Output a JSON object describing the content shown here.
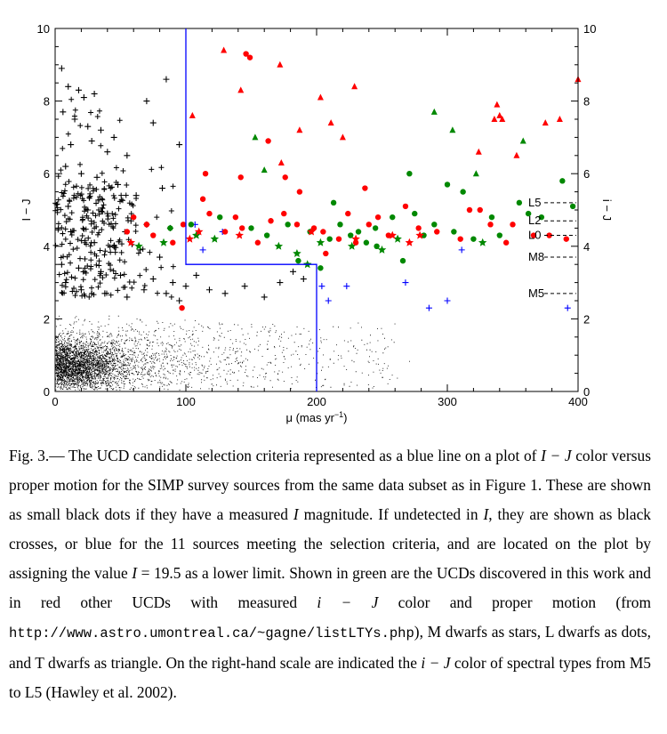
{
  "figure": {
    "x_title": "μ (mas yr",
    "x_title_sup": "−1",
    "x_title_end": ")",
    "y_title_left": "I − J",
    "y_title_right": "i − J",
    "spectral_labels": [
      "L5",
      "L2",
      "L0",
      "M8",
      "M5"
    ],
    "colors": {
      "black": "#000000",
      "blue": "#0000ff",
      "green": "#008800",
      "red": "#ff0000",
      "selection_line": "#0000ff"
    }
  },
  "chart_data": {
    "type": "scatter",
    "xlabel": "μ (mas yr−1)",
    "ylabel": "I − J",
    "ylabel_right": "i − J",
    "xlim": [
      0,
      400
    ],
    "ylim": [
      0,
      10
    ],
    "x_ticks": [
      0,
      100,
      200,
      300,
      400
    ],
    "y_ticks": [
      0,
      2,
      4,
      6,
      8,
      10
    ],
    "selection_criteria_line": [
      [
        100,
        10
      ],
      [
        100,
        3.5
      ],
      [
        200,
        3.5
      ],
      [
        200,
        0
      ]
    ],
    "spectral_types_right_scale": [
      {
        "label": "L5",
        "i_minus_J": 5.2
      },
      {
        "label": "L2",
        "i_minus_J": 4.7
      },
      {
        "label": "L0",
        "i_minus_J": 4.3
      },
      {
        "label": "M8",
        "i_minus_J": 3.7
      },
      {
        "label": "M5",
        "i_minus_J": 2.7
      }
    ],
    "series": [
      {
        "marker": "dot-small",
        "color": "#000000",
        "points": [
          [
            8,
            0.5
          ],
          [
            12,
            0.8
          ],
          [
            15,
            0.6
          ],
          [
            20,
            0.9
          ],
          [
            25,
            0.4
          ],
          [
            30,
            1.1
          ],
          [
            40,
            0.7
          ],
          [
            55,
            0.9
          ],
          [
            70,
            1.2
          ],
          [
            90,
            0.6
          ],
          [
            110,
            1.0
          ],
          [
            140,
            0.8
          ],
          [
            170,
            0.5
          ],
          [
            210,
            0.9
          ],
          [
            250,
            0.4
          ]
        ]
      },
      {
        "marker": "cross",
        "color": "#000000",
        "points": [
          [
            5,
            8.9
          ],
          [
            10,
            8.4
          ],
          [
            18,
            8.3
          ],
          [
            22,
            8.1
          ],
          [
            30,
            8.2
          ],
          [
            6,
            7.7
          ],
          [
            15,
            7.5
          ],
          [
            25,
            7.3
          ],
          [
            35,
            7.2
          ],
          [
            45,
            7.0
          ],
          [
            12,
            6.8
          ],
          [
            28,
            6.9
          ],
          [
            40,
            6.6
          ],
          [
            55,
            6.5
          ],
          [
            75,
            7.4
          ],
          [
            85,
            8.6
          ],
          [
            70,
            8.0
          ],
          [
            8,
            6.2
          ],
          [
            20,
            6.0
          ],
          [
            32,
            5.9
          ],
          [
            48,
            5.7
          ],
          [
            62,
            5.4
          ],
          [
            82,
            5.6
          ],
          [
            95,
            6.8
          ],
          [
            10,
            5.1
          ],
          [
            25,
            5.0
          ],
          [
            40,
            4.9
          ],
          [
            58,
            4.7
          ],
          [
            70,
            4.6
          ],
          [
            88,
            4.5
          ],
          [
            12,
            4.4
          ],
          [
            30,
            4.1
          ],
          [
            45,
            4.0
          ],
          [
            65,
            3.9
          ],
          [
            80,
            3.7
          ],
          [
            5,
            3.5
          ],
          [
            18,
            3.4
          ],
          [
            35,
            3.3
          ],
          [
            50,
            3.2
          ],
          [
            75,
            3.1
          ],
          [
            90,
            3.0
          ],
          [
            100,
            2.9
          ],
          [
            108,
            3.2
          ],
          [
            118,
            2.8
          ],
          [
            130,
            2.7
          ],
          [
            145,
            2.9
          ],
          [
            160,
            2.6
          ],
          [
            172,
            3.0
          ],
          [
            182,
            3.3
          ],
          [
            190,
            3.1
          ],
          [
            8,
            3.0
          ],
          [
            20,
            2.8
          ],
          [
            38,
            2.7
          ],
          [
            55,
            2.6
          ],
          [
            68,
            2.8
          ],
          [
            85,
            2.7
          ],
          [
            95,
            2.5
          ]
        ]
      },
      {
        "marker": "cross",
        "color": "#0000ff",
        "points": [
          [
            107,
            4.6
          ],
          [
            113,
            3.9
          ],
          [
            128,
            4.4
          ],
          [
            204,
            2.9
          ],
          [
            209,
            2.5
          ],
          [
            223,
            2.9
          ],
          [
            268,
            3.0
          ],
          [
            286,
            2.3
          ],
          [
            300,
            2.5
          ],
          [
            311,
            3.9
          ],
          [
            392,
            2.3
          ]
        ]
      },
      {
        "marker": "star",
        "color": "#008800",
        "points": [
          [
            64,
            4.0
          ],
          [
            83,
            4.1
          ],
          [
            108,
            4.3
          ],
          [
            122,
            4.2
          ],
          [
            171,
            4.0
          ],
          [
            185,
            3.8
          ],
          [
            193,
            3.5
          ],
          [
            203,
            4.1
          ],
          [
            227,
            4.0
          ],
          [
            250,
            3.9
          ],
          [
            262,
            4.2
          ],
          [
            327,
            4.1
          ]
        ]
      },
      {
        "marker": "dot",
        "color": "#008800",
        "points": [
          [
            88,
            4.5
          ],
          [
            104,
            4.6
          ],
          [
            126,
            4.8
          ],
          [
            150,
            4.5
          ],
          [
            162,
            4.3
          ],
          [
            178,
            4.6
          ],
          [
            195,
            4.4
          ],
          [
            210,
            4.2
          ],
          [
            218,
            4.6
          ],
          [
            232,
            4.4
          ],
          [
            238,
            4.1
          ],
          [
            245,
            4.5
          ],
          [
            258,
            4.8
          ],
          [
            266,
            3.6
          ],
          [
            275,
            4.9
          ],
          [
            282,
            4.3
          ],
          [
            290,
            4.6
          ],
          [
            305,
            4.4
          ],
          [
            312,
            5.5
          ],
          [
            320,
            4.2
          ],
          [
            334,
            4.8
          ],
          [
            340,
            4.3
          ],
          [
            355,
            5.2
          ],
          [
            362,
            4.9
          ],
          [
            372,
            4.8
          ],
          [
            388,
            5.8
          ],
          [
            396,
            5.1
          ],
          [
            271,
            6.0
          ],
          [
            300,
            5.7
          ],
          [
            213,
            5.2
          ],
          [
            246,
            4.0
          ],
          [
            226,
            4.3
          ],
          [
            203,
            3.4
          ],
          [
            186,
            3.6
          ]
        ]
      },
      {
        "marker": "triangle",
        "color": "#008800",
        "points": [
          [
            290,
            7.7
          ],
          [
            304,
            7.2
          ],
          [
            322,
            6.0
          ],
          [
            358,
            6.9
          ],
          [
            160,
            6.1
          ],
          [
            153,
            7.0
          ]
        ]
      },
      {
        "marker": "dot",
        "color": "#ff0000",
        "points": [
          [
            55,
            4.4
          ],
          [
            60,
            4.8
          ],
          [
            70,
            4.6
          ],
          [
            75,
            4.3
          ],
          [
            90,
            4.1
          ],
          [
            98,
            4.6
          ],
          [
            113,
            5.3
          ],
          [
            118,
            4.9
          ],
          [
            130,
            4.4
          ],
          [
            138,
            4.8
          ],
          [
            143,
            4.5
          ],
          [
            155,
            4.1
          ],
          [
            165,
            4.7
          ],
          [
            175,
            4.9
          ],
          [
            185,
            4.6
          ],
          [
            198,
            4.5
          ],
          [
            205,
            4.4
          ],
          [
            217,
            4.2
          ],
          [
            224,
            4.9
          ],
          [
            230,
            4.1
          ],
          [
            240,
            4.6
          ],
          [
            247,
            4.8
          ],
          [
            255,
            4.3
          ],
          [
            268,
            5.1
          ],
          [
            278,
            4.5
          ],
          [
            292,
            4.4
          ],
          [
            310,
            4.2
          ],
          [
            317,
            5.0
          ],
          [
            325,
            5.0
          ],
          [
            333,
            4.6
          ],
          [
            345,
            4.1
          ],
          [
            350,
            4.6
          ],
          [
            366,
            4.3
          ],
          [
            378,
            4.3
          ],
          [
            391,
            4.2
          ],
          [
            115,
            6.0
          ],
          [
            142,
            5.9
          ],
          [
            163,
            6.9
          ],
          [
            176,
            5.9
          ],
          [
            187,
            5.5
          ],
          [
            237,
            5.6
          ],
          [
            149,
            9.2
          ],
          [
            146,
            9.3
          ],
          [
            97,
            2.3
          ],
          [
            207,
            3.8
          ]
        ]
      },
      {
        "marker": "triangle",
        "color": "#ff0000",
        "points": [
          [
            129,
            9.4
          ],
          [
            105,
            7.6
          ],
          [
            142,
            8.3
          ],
          [
            172,
            9.0
          ],
          [
            173,
            6.3
          ],
          [
            187,
            7.2
          ],
          [
            203,
            8.1
          ],
          [
            211,
            7.4
          ],
          [
            220,
            7.0
          ],
          [
            229,
            8.4
          ],
          [
            338,
            7.9
          ],
          [
            340,
            7.6
          ],
          [
            342,
            7.5
          ],
          [
            375,
            7.4
          ],
          [
            386,
            7.5
          ],
          [
            400,
            8.6
          ],
          [
            324,
            6.6
          ],
          [
            336,
            7.5
          ],
          [
            353,
            6.5
          ]
        ]
      },
      {
        "marker": "star",
        "color": "#ff0000",
        "points": [
          [
            58,
            4.1
          ],
          [
            103,
            4.2
          ],
          [
            110,
            4.4
          ],
          [
            141,
            4.3
          ],
          [
            196,
            4.4
          ],
          [
            230,
            4.2
          ],
          [
            258,
            4.3
          ],
          [
            271,
            4.1
          ],
          [
            279,
            4.3
          ]
        ]
      }
    ]
  },
  "caption": {
    "fig_label": "Fig. 3.— ",
    "part1": "The UCD candidate selection criteria represented as a blue line on a plot of ",
    "ij_1": "I − J",
    "part2": " color versus proper motion for the SIMP survey sources from the same data subset as in Figure 1. These are shown as small black dots if they have a measured ",
    "i_mag": "I",
    "part3": " magnitude. If undetected in ",
    "i_mag2": "I",
    "part4": ", they are shown as black crosses, or blue for the 11 sources meeting the selection criteria, and are located on the plot by assigning the value ",
    "i_eq": "I",
    "part5": " = 19.5 as a lower limit. Shown in green are the UCDs discovered in this work and in red other UCDs with measured ",
    "ij_2": "i − J",
    "part6": " color and proper motion (from ",
    "url": "http://www.astro.umontreal.ca/~gagne/listLTYs.php",
    "part7": "), M dwarfs as stars, L dwarfs as dots, and T dwarfs as triangle. On the right-hand scale are indicated the ",
    "ij_3": "i − J",
    "part8": " color of spectral types from M5 to L5 (Hawley et al. 2002)."
  }
}
